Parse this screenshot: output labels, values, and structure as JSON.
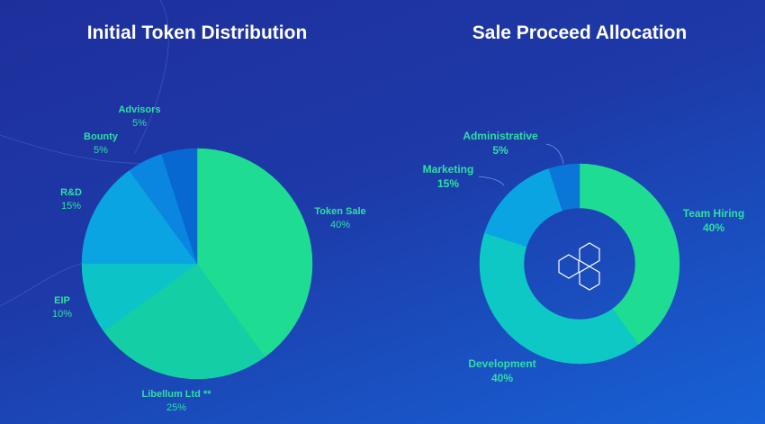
{
  "chart_data": [
    {
      "type": "pie",
      "title": "Initial Token Distribution",
      "slices": [
        {
          "label": "Token Sale",
          "pct_label": "40%",
          "value": 40,
          "color": "#1fdc93"
        },
        {
          "label": "Libellum Ltd **",
          "pct_label": "25%",
          "value": 25,
          "color": "#14cfa6"
        },
        {
          "label": "EIP",
          "pct_label": "10%",
          "value": 10,
          "color": "#0cc4c8"
        },
        {
          "label": "R&D",
          "pct_label": "15%",
          "value": 15,
          "color": "#0ba4e2"
        },
        {
          "label": "Bounty",
          "pct_label": "5%",
          "value": 5,
          "color": "#0a86e0"
        },
        {
          "label": "Advisors",
          "pct_label": "5%",
          "value": 5,
          "color": "#0868d2"
        }
      ]
    },
    {
      "type": "pie",
      "donut": true,
      "title": "Sale Proceed Allocation",
      "slices": [
        {
          "label": "Team Hiring",
          "pct_label": "40%",
          "value": 40,
          "color": "#1fdc93"
        },
        {
          "label": "Development",
          "pct_label": "40%",
          "value": 40,
          "color": "#0dc8c4"
        },
        {
          "label": "Marketing",
          "pct_label": "15%",
          "value": 15,
          "color": "#0ba4e2"
        },
        {
          "label": "Administrative",
          "pct_label": "5%",
          "value": 5,
          "color": "#0a77d8"
        }
      ]
    }
  ],
  "colors": {
    "background_start": "#1e2f9c",
    "background_end": "#1762d6",
    "label": "#2fe0a2",
    "title": "#ffffff"
  }
}
